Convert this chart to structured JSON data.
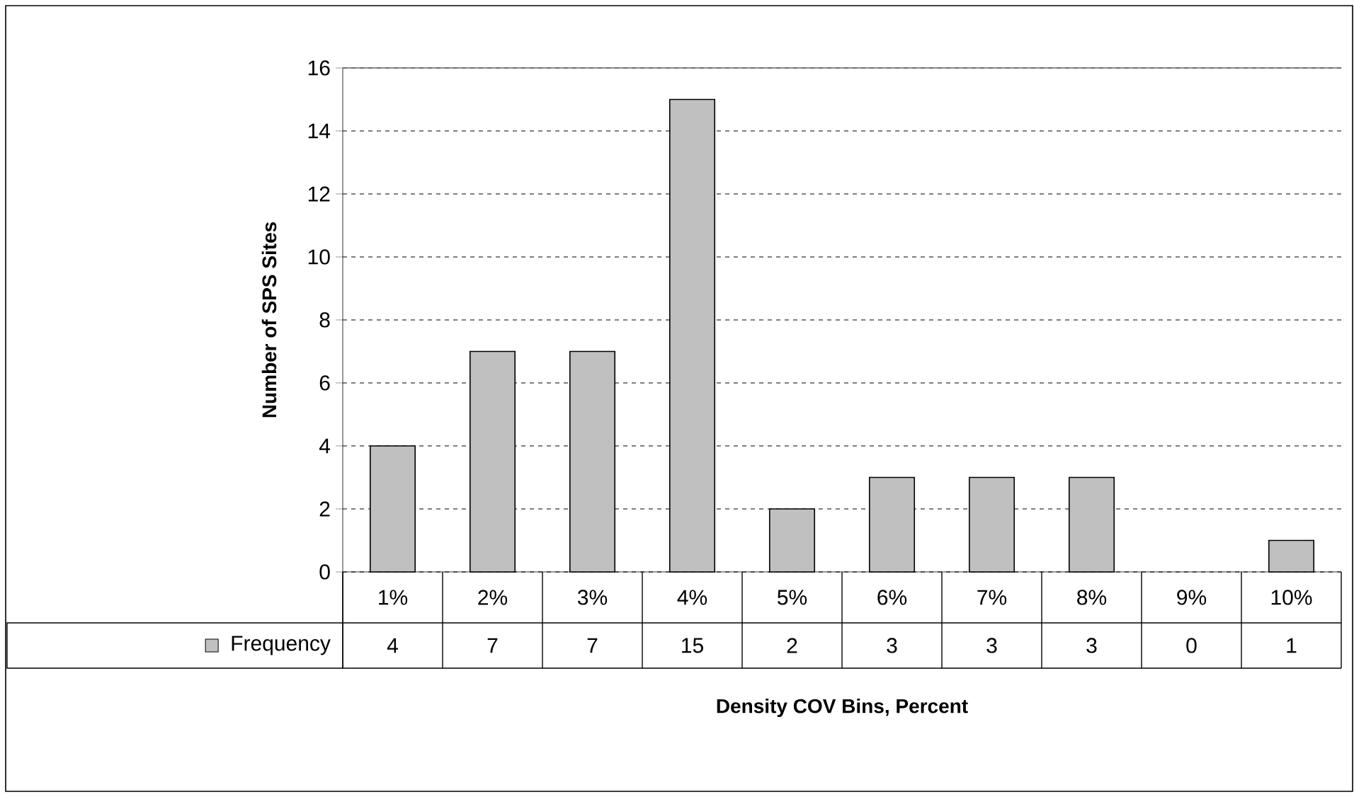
{
  "chart_data": {
    "type": "bar",
    "categories": [
      "1%",
      "2%",
      "3%",
      "4%",
      "5%",
      "6%",
      "7%",
      "8%",
      "9%",
      "10%"
    ],
    "series": [
      {
        "name": "Frequency",
        "color": "#c0c0c0",
        "values": [
          4,
          7,
          7,
          15,
          2,
          3,
          3,
          3,
          0,
          1
        ]
      }
    ],
    "xlabel": "Density COV Bins, Percent",
    "ylabel": "Number of SPS Sites",
    "ylim": [
      0,
      16
    ],
    "yticks": [
      0,
      2,
      4,
      6,
      8,
      10,
      12,
      14,
      16
    ],
    "grid": "y",
    "legend": "bottom",
    "data_labels": true
  }
}
